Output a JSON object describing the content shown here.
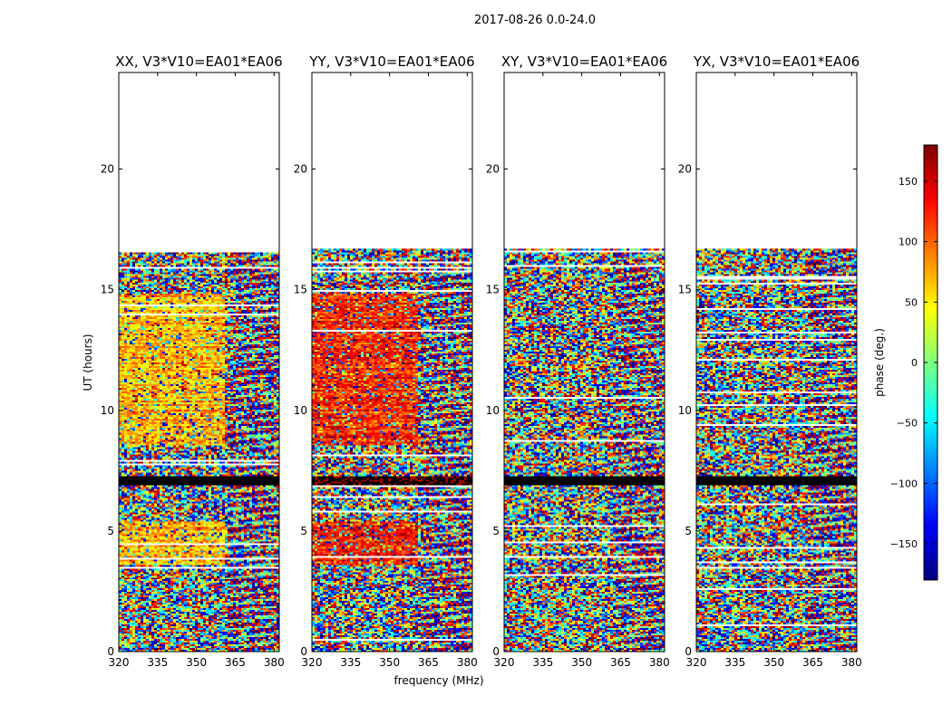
{
  "figure": {
    "suptitle": "2017-08-26 0.0-24.0",
    "xlabel": "frequency (MHz)",
    "ylabel": "UT (hours)",
    "colorbar_label": "phase (deg.)",
    "colorbar_ticks": [
      150,
      100,
      50,
      0,
      -50,
      -100,
      -150
    ],
    "colorbar_tick_labels": [
      "150",
      "100",
      "50",
      "0",
      "−50",
      "−100",
      "−150"
    ],
    "colorbar_range": [
      -180,
      180
    ],
    "colormap": [
      "#00007f",
      "#0000ff",
      "#007fff",
      "#00ffff",
      "#7fff7f",
      "#ffff00",
      "#ff7f00",
      "#ff0000",
      "#7f0000"
    ]
  },
  "chart_data": [
    {
      "type": "heatmap",
      "title": "XX, V3*V10=EA01*EA06",
      "xlim": [
        320,
        382
      ],
      "ylim": [
        0,
        24
      ],
      "xticks": [
        320,
        335,
        350,
        365,
        380
      ],
      "yticks": [
        0,
        5,
        10,
        15,
        20
      ],
      "xlabel": "",
      "ylabel": "UT (hours)",
      "data_extent_hours": [
        0,
        16.7
      ],
      "coherent_phase_deg": 70,
      "coherent_channel_max_MHz": 361,
      "coherent_time_ranges_hours": [
        [
          8.5,
          14.8
        ],
        [
          3.6,
          5.4
        ]
      ],
      "flagged_time_ranges_hours": [
        [
          6.9,
          7.3
        ]
      ]
    },
    {
      "type": "heatmap",
      "title": "YY, V3*V10=EA01*EA06",
      "xlim": [
        320,
        382
      ],
      "ylim": [
        0,
        24
      ],
      "xticks": [
        320,
        335,
        350,
        365,
        380
      ],
      "yticks": [
        0,
        5,
        10,
        15,
        20
      ],
      "xlabel": "frequency (MHz)",
      "ylabel": "",
      "data_extent_hours": [
        0,
        16.7
      ],
      "coherent_phase_deg": 125,
      "coherent_channel_max_MHz": 361,
      "coherent_time_ranges_hours": [
        [
          8.5,
          14.8
        ],
        [
          3.6,
          5.4
        ]
      ],
      "flagged_time_ranges_hours": [
        [
          6.9,
          7.3
        ]
      ]
    },
    {
      "type": "heatmap",
      "title": "XY, V3*V10=EA01*EA06",
      "xlim": [
        320,
        382
      ],
      "ylim": [
        0,
        24
      ],
      "xticks": [
        320,
        335,
        350,
        365,
        380
      ],
      "yticks": [
        0,
        5,
        10,
        15,
        20
      ],
      "xlabel": "",
      "ylabel": "",
      "data_extent_hours": [
        0,
        16.7
      ],
      "coherent_phase_deg": null,
      "coherent_channel_max_MHz": null,
      "coherent_time_ranges_hours": [],
      "flagged_time_ranges_hours": [
        [
          6.9,
          7.3
        ]
      ]
    },
    {
      "type": "heatmap",
      "title": "YX, V3*V10=EA01*EA06",
      "xlim": [
        320,
        382
      ],
      "ylim": [
        0,
        24
      ],
      "xticks": [
        320,
        335,
        350,
        365,
        380
      ],
      "yticks": [
        0,
        5,
        10,
        15,
        20
      ],
      "xlabel": "",
      "ylabel": "",
      "data_extent_hours": [
        0,
        16.7
      ],
      "coherent_phase_deg": null,
      "coherent_channel_max_MHz": null,
      "coherent_time_ranges_hours": [],
      "flagged_time_ranges_hours": [
        [
          6.9,
          7.3
        ]
      ]
    }
  ]
}
